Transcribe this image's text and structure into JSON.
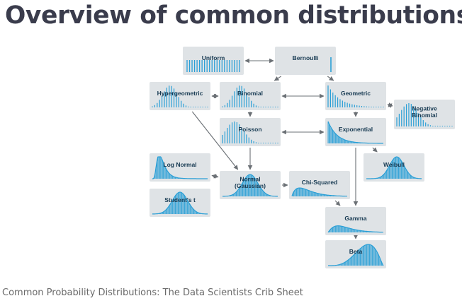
{
  "title": "Overview of common distributions",
  "caption": "Common Probability Distributions: The Data Scientists Crib Sheet",
  "colors": {
    "node_background": "#dfe3e6",
    "curve": "#2a9fd6",
    "arrow": "#6b7075",
    "title": "#3a3c4c"
  },
  "nodes": [
    {
      "id": "uniform",
      "lines": [
        "Uniform"
      ],
      "shape": "uniform-bars"
    },
    {
      "id": "bernoulli",
      "lines": [
        "Bernoulli"
      ],
      "shape": "bernoulli-bars"
    },
    {
      "id": "hypergeometric",
      "lines": [
        "Hypergeometric"
      ],
      "shape": "discrete-peak"
    },
    {
      "id": "binomial",
      "lines": [
        "Binomial"
      ],
      "shape": "discrete-peak"
    },
    {
      "id": "geometric",
      "lines": [
        "Geometric"
      ],
      "shape": "discrete-decay"
    },
    {
      "id": "negative_binomial",
      "lines": [
        "Negative",
        "Binomial"
      ],
      "shape": "discrete-skew"
    },
    {
      "id": "poisson",
      "lines": [
        "Poisson"
      ],
      "shape": "discrete-skew"
    },
    {
      "id": "exponential",
      "lines": [
        "Exponential"
      ],
      "shape": "continuous-decay"
    },
    {
      "id": "log_normal",
      "lines": [
        "Log Normal"
      ],
      "shape": "lognormal"
    },
    {
      "id": "normal",
      "lines": [
        "Normal",
        "(Gaussian)"
      ],
      "shape": "bell"
    },
    {
      "id": "chi_squared",
      "lines": [
        "Chi-Squared"
      ],
      "shape": "chi-squared"
    },
    {
      "id": "weibull",
      "lines": [
        "Weibull"
      ],
      "shape": "weibull"
    },
    {
      "id": "students_t",
      "lines": [
        "Student's t"
      ],
      "shape": "bell"
    },
    {
      "id": "gamma",
      "lines": [
        "Gamma"
      ],
      "shape": "gamma"
    },
    {
      "id": "beta",
      "lines": [
        "Beta"
      ],
      "shape": "beta"
    }
  ],
  "edges": [
    {
      "from": "uniform",
      "to": "bernoulli",
      "bidirectional": true
    },
    {
      "from": "bernoulli",
      "to": "binomial",
      "bidirectional": false
    },
    {
      "from": "bernoulli",
      "to": "geometric",
      "bidirectional": false
    },
    {
      "from": "hypergeometric",
      "to": "binomial",
      "bidirectional": true
    },
    {
      "from": "binomial",
      "to": "geometric",
      "bidirectional": true
    },
    {
      "from": "geometric",
      "to": "negative_binomial",
      "bidirectional": true
    },
    {
      "from": "binomial",
      "to": "poisson",
      "bidirectional": false
    },
    {
      "from": "geometric",
      "to": "exponential",
      "bidirectional": false
    },
    {
      "from": "poisson",
      "to": "exponential",
      "bidirectional": true
    },
    {
      "from": "hypergeometric",
      "to": "normal",
      "bidirectional": false
    },
    {
      "from": "poisson",
      "to": "normal",
      "bidirectional": false
    },
    {
      "from": "exponential",
      "to": "weibull",
      "bidirectional": false
    },
    {
      "from": "log_normal",
      "to": "normal",
      "bidirectional": true
    },
    {
      "from": "normal",
      "to": "chi_squared",
      "bidirectional": false
    },
    {
      "from": "exponential",
      "to": "gamma",
      "bidirectional": false
    },
    {
      "from": "chi_squared",
      "to": "gamma",
      "bidirectional": false
    },
    {
      "from": "gamma",
      "to": "beta",
      "bidirectional": false
    }
  ]
}
